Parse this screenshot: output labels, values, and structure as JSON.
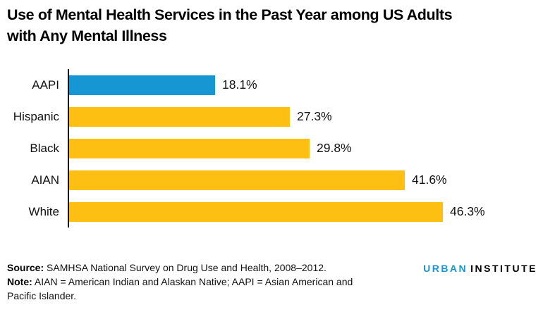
{
  "header": {
    "title_line1": "Use of Mental Health Services in the Past Year among US Adults",
    "title_line2": "with Any Mental Illness"
  },
  "chart_data": {
    "type": "bar",
    "orientation": "horizontal",
    "title": "Use of Mental Health Services in the Past Year among US Adults with Any Mental Illness",
    "categories": [
      "AAPI",
      "Hispanic",
      "Black",
      "AIAN",
      "White"
    ],
    "values": [
      18.1,
      27.3,
      29.8,
      41.6,
      46.3
    ],
    "value_labels": [
      "18.1%",
      "27.3%",
      "29.8%",
      "41.6%",
      "46.3%"
    ],
    "unit": "%",
    "xlabel": "",
    "ylabel": "",
    "xlim": [
      0,
      50
    ],
    "grid": false,
    "legend": false,
    "bar_colors": [
      "#1696d2",
      "#fdbf11",
      "#fdbf11",
      "#fdbf11",
      "#fdbf11"
    ],
    "highlight_color": "#1696d2",
    "default_color": "#fdbf11",
    "axis_color": "#000000"
  },
  "footer": {
    "source_label": "Source:",
    "source_text": " SAMHSA National Survey on Drug Use and Health, 2008–2012.",
    "note_label": "Note:",
    "note_line1": " AIAN = American Indian and Alaskan Native; AAPI = Asian American and",
    "note_line2": "Pacific Islander."
  },
  "logo": {
    "part1": "URBAN",
    "part2": "INSTITUTE",
    "part1_color": "#1696d2",
    "part2_color": "#000000"
  }
}
